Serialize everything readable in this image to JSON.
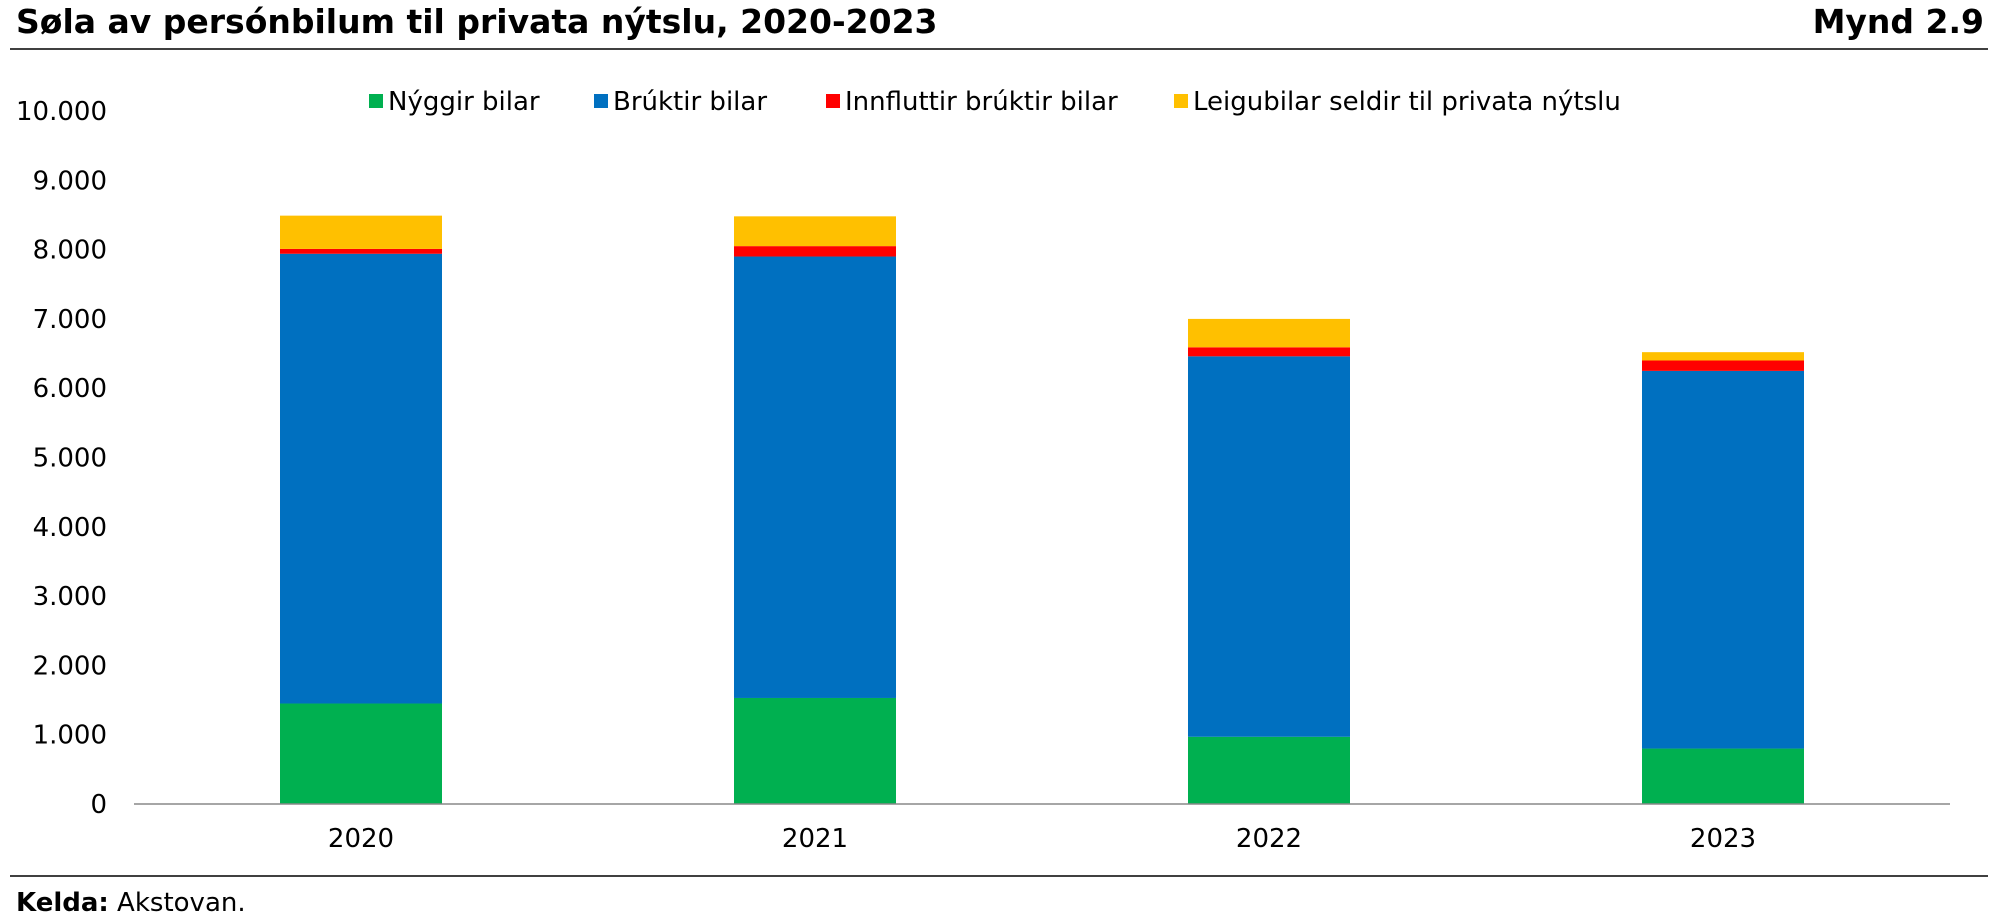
{
  "header": {
    "title": "Søla av persónbilum til privata nýtslu, 2020-2023",
    "figure_label": "Mynd 2.9"
  },
  "footer": {
    "source_label": "Kelda:",
    "source_text": " Akstovan."
  },
  "chart_data": {
    "type": "bar",
    "stacked": true,
    "categories": [
      "2020",
      "2021",
      "2022",
      "2023"
    ],
    "series": [
      {
        "name": "Nýggir bilar",
        "color": "#00B050",
        "values": [
          1450,
          1530,
          970,
          800
        ]
      },
      {
        "name": "Brúktir bilar",
        "color": "#0070C0",
        "values": [
          6490,
          6370,
          5490,
          5450
        ]
      },
      {
        "name": "Innfluttir brúktir bilar",
        "color": "#FF0000",
        "values": [
          70,
          150,
          130,
          150
        ]
      },
      {
        "name": "Leigubilar seldir til privata nýtslu",
        "color": "#FFC000",
        "values": [
          480,
          430,
          410,
          120
        ]
      }
    ],
    "ylim": [
      0,
      10000
    ],
    "yticks": [
      0,
      1000,
      2000,
      3000,
      4000,
      5000,
      6000,
      7000,
      8000,
      9000,
      10000
    ],
    "ytick_labels": [
      "0",
      "1.000",
      "2.000",
      "3.000",
      "4.000",
      "5.000",
      "6.000",
      "7.000",
      "8.000",
      "9.000",
      "10.000"
    ],
    "legend_position": "top",
    "grid": false
  }
}
